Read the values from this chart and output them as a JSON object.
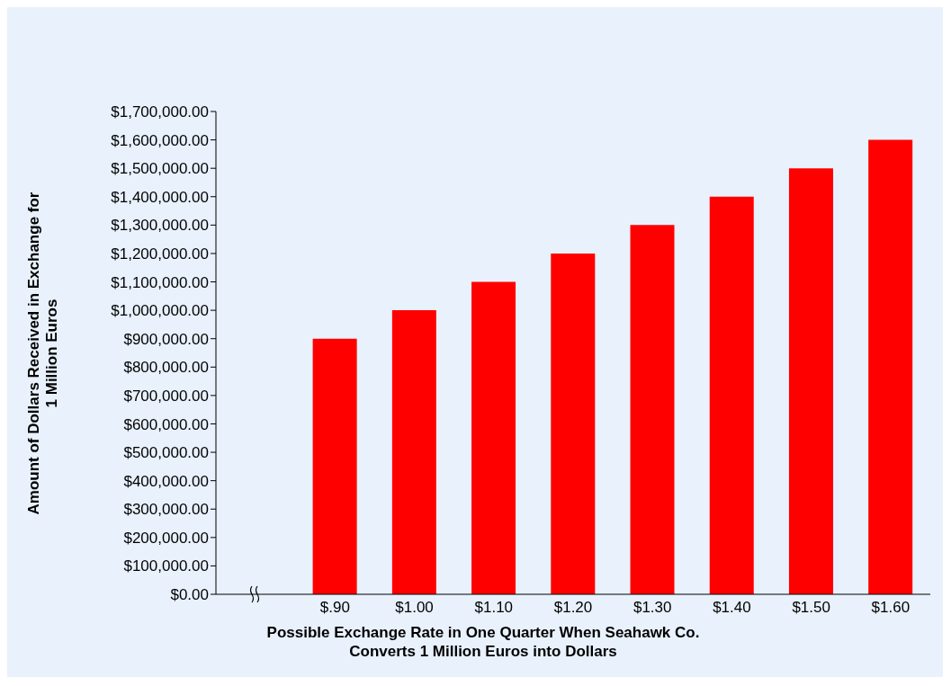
{
  "chart_data": {
    "type": "bar",
    "xlabel": "Possible Exchange Rate in One Quarter When Seahawk Co.\nConverts 1 Million Euros into Dollars",
    "ylabel": "Amount of Dollars Received in Exchange for\n1 Million Euros",
    "categories": [
      null,
      "$.90",
      "$1.00",
      "$1.10",
      "$1.20",
      "$1.30",
      "$1.40",
      "$1.50",
      "$1.60"
    ],
    "values": [
      null,
      900000,
      1000000,
      1100000,
      1200000,
      1300000,
      1400000,
      1500000,
      1600000
    ],
    "color": "#ff0000",
    "ylim": [
      0,
      1700000
    ],
    "yticks": [
      {
        "value": 0,
        "label": "$0.00"
      },
      {
        "value": 100000,
        "label": "$100,000.00"
      },
      {
        "value": 200000,
        "label": "$200,000.00"
      },
      {
        "value": 300000,
        "label": "$300,000.00"
      },
      {
        "value": 400000,
        "label": "$400,000.00"
      },
      {
        "value": 500000,
        "label": "$500,000.00"
      },
      {
        "value": 600000,
        "label": "$600,000.00"
      },
      {
        "value": 700000,
        "label": "$700,000.00"
      },
      {
        "value": 800000,
        "label": "$800,000.00"
      },
      {
        "value": 900000,
        "label": "$900,000.00"
      },
      {
        "value": 1000000,
        "label": "$1,000,000.00"
      },
      {
        "value": 1100000,
        "label": "$1,100,000.00"
      },
      {
        "value": 1200000,
        "label": "$1,200,000.00"
      },
      {
        "value": 1300000,
        "label": "$1,300,000.00"
      },
      {
        "value": 1400000,
        "label": "$1,400,000.00"
      },
      {
        "value": 1500000,
        "label": "$1,500,000.00"
      },
      {
        "value": 1600000,
        "label": "$1,600,000.00"
      },
      {
        "value": 1700000,
        "label": "$1,700,000.00"
      }
    ],
    "grid": false
  }
}
